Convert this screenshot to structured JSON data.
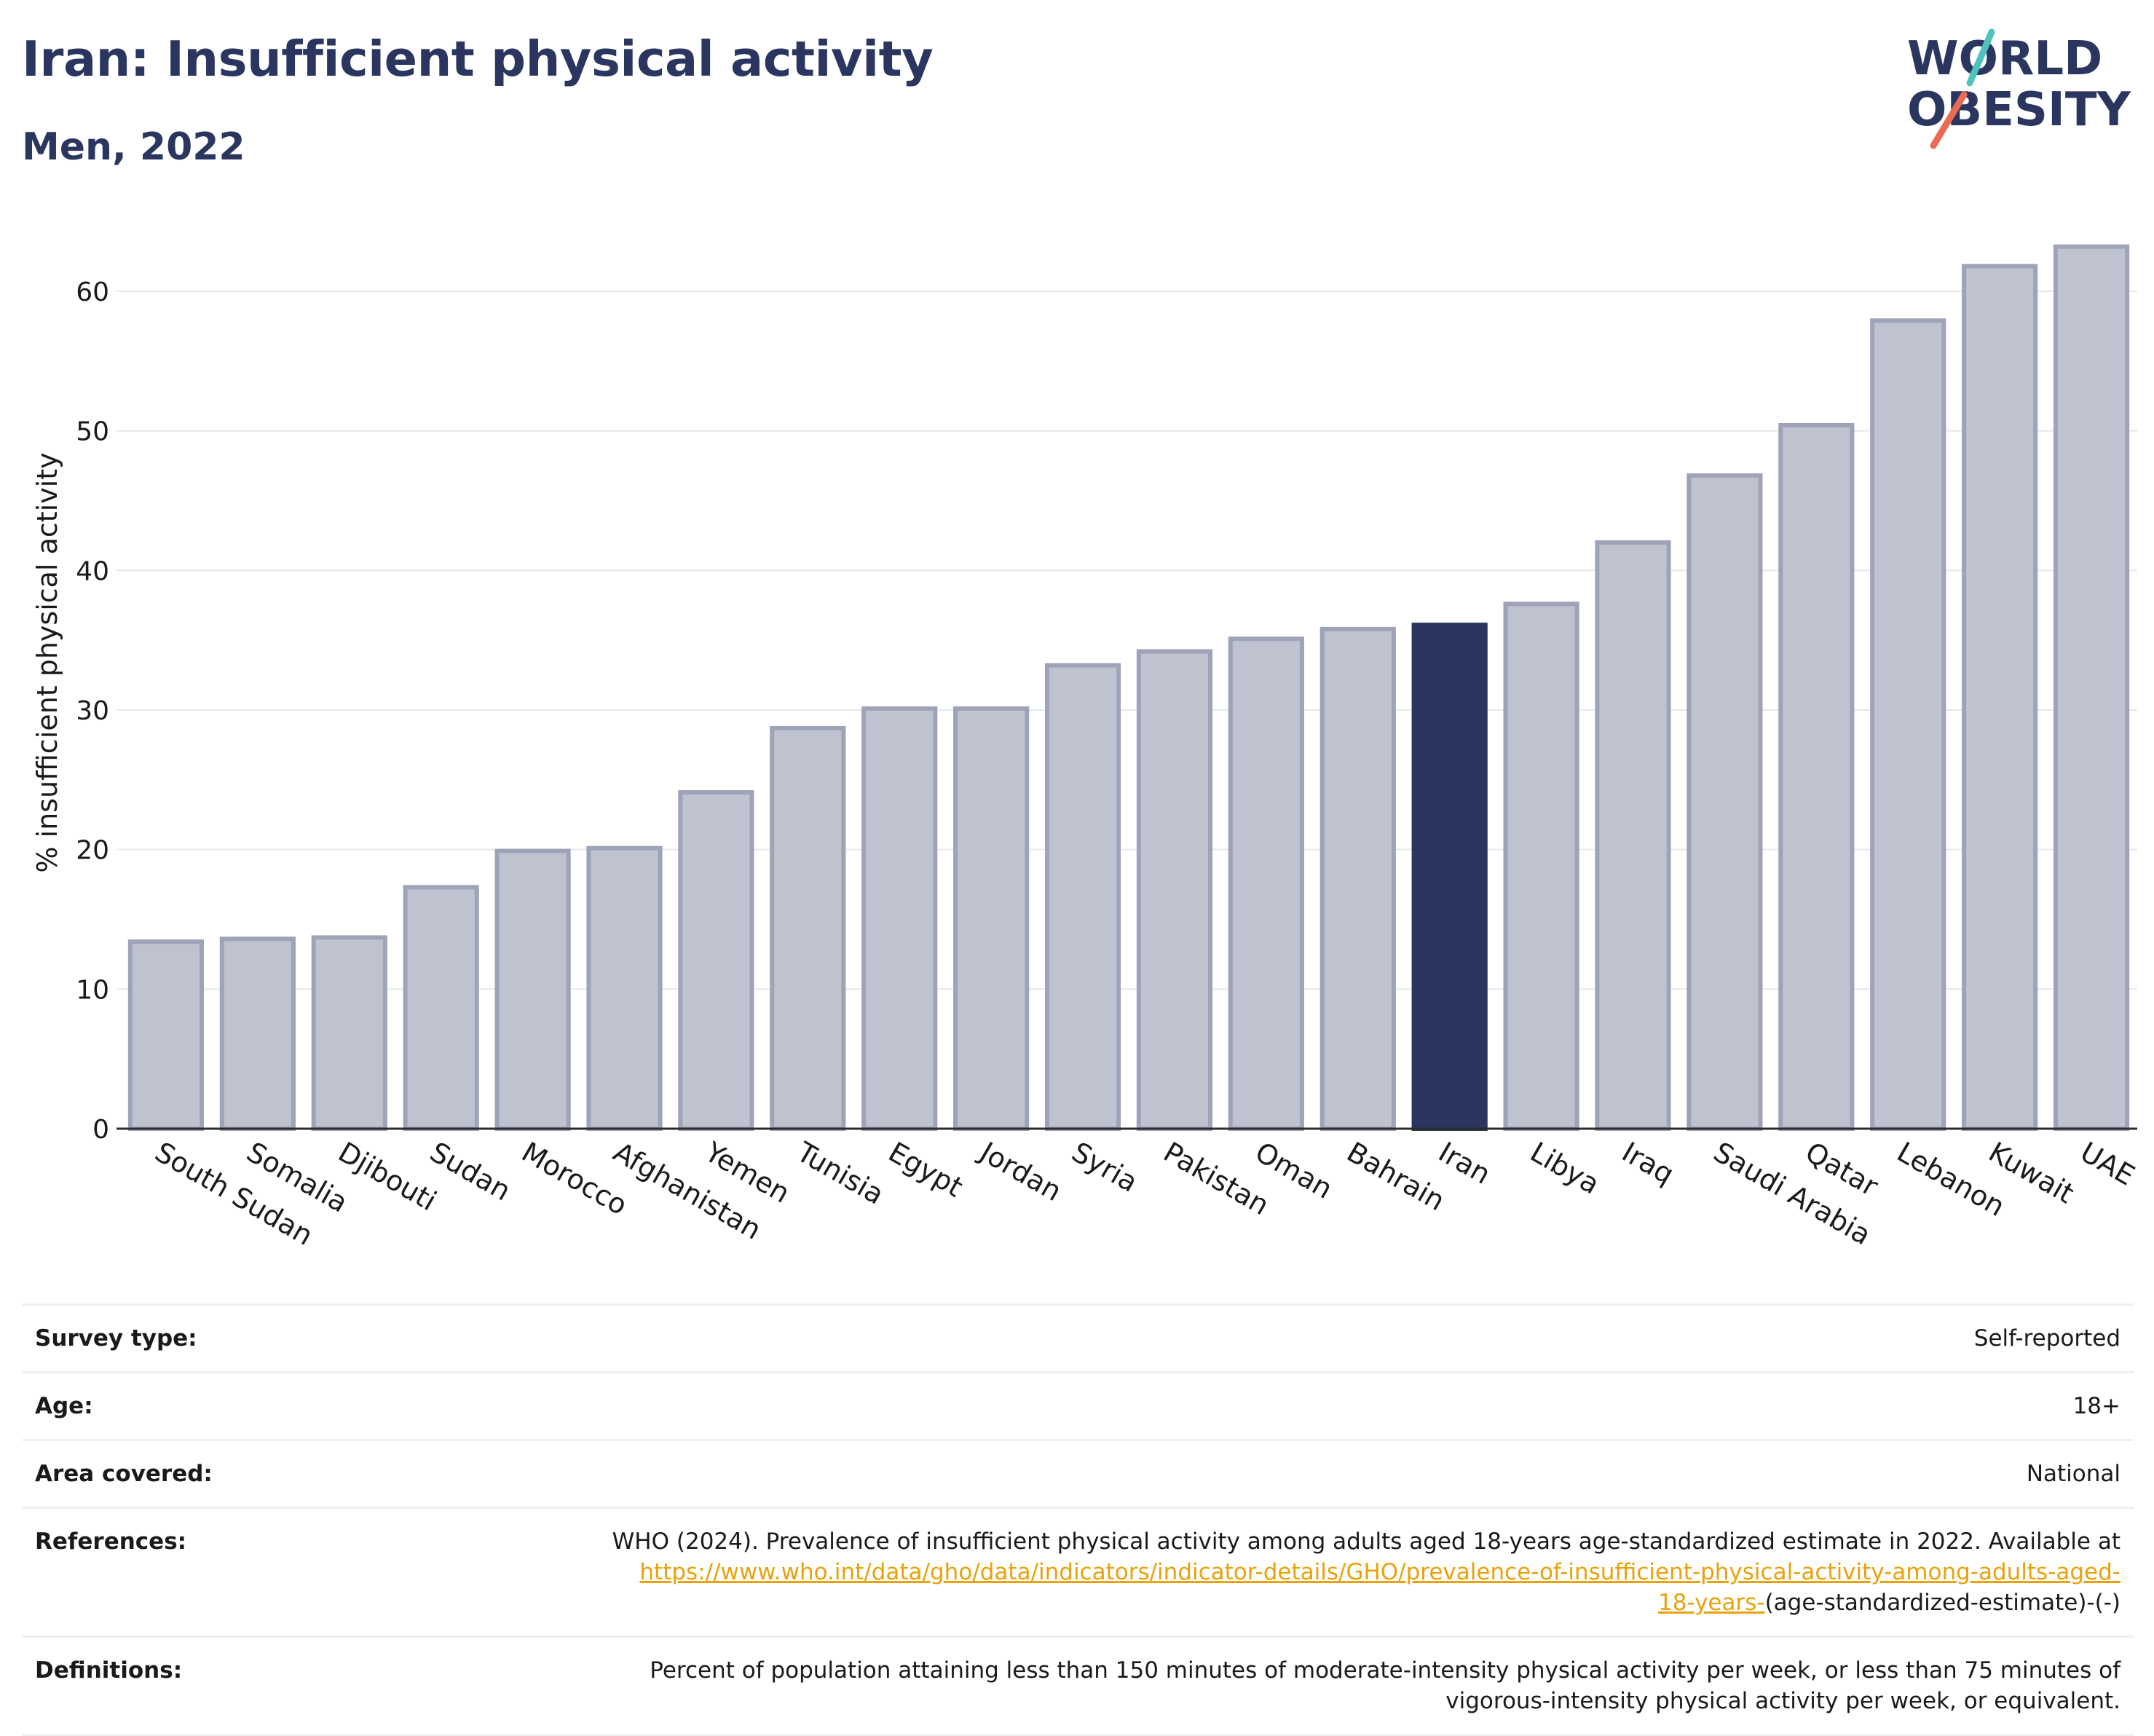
{
  "header": {
    "title": "Iran: Insufficient physical activity",
    "subtitle": "Men, 2022"
  },
  "logo": {
    "line1": "WORLD",
    "line2": "OBESITY",
    "name": "world-obesity-logo"
  },
  "colors": {
    "highlight": "#2a365f",
    "bar": "#bfc2cf",
    "bar_edge": "#9ea3b8",
    "accent_link": "#e8a20c"
  },
  "chart_data": {
    "type": "bar",
    "title": "Iran: Insufficient physical activity",
    "subtitle": "Men, 2022",
    "xlabel": "",
    "ylabel": "% insufficient physical activity",
    "ylim": [
      0,
      65
    ],
    "yticks": [
      0,
      10,
      20,
      30,
      40,
      50,
      60
    ],
    "grid": true,
    "highlight": "Iran",
    "categories": [
      "South Sudan",
      "Somalia",
      "Djibouti",
      "Sudan",
      "Morocco",
      "Afghanistan",
      "Yemen",
      "Tunisia",
      "Egypt",
      "Jordan",
      "Syria",
      "Pakistan",
      "Oman",
      "Bahrain",
      "Iran",
      "Libya",
      "Iraq",
      "Saudi Arabia",
      "Qatar",
      "Lebanon",
      "Kuwait",
      "UAE"
    ],
    "values": [
      13.4,
      13.6,
      13.7,
      17.3,
      19.9,
      20.1,
      24.1,
      28.7,
      30.1,
      30.1,
      33.2,
      34.2,
      35.1,
      35.8,
      36.1,
      37.6,
      42.0,
      46.8,
      50.4,
      57.9,
      61.8,
      63.2
    ]
  },
  "info": {
    "survey_type_label": "Survey type:",
    "survey_type_value": "Self-reported",
    "age_label": "Age:",
    "age_value": "18+",
    "area_label": "Area covered:",
    "area_value": "National",
    "references_label": "References:",
    "references_text": "WHO (2024). Prevalence of insufficient physical activity among adults aged 18-years age-standardized estimate in 2022. Available at",
    "references_link_1": "https://www.who.int/data/gho/data/indicators/indicator-details/GHO/prevalence-of-insufficient-physical-activity-among-adults-aged-",
    "references_link_2": "18-years-",
    "references_tail": "(age-standardized-estimate)-(-)",
    "definitions_label": "Definitions:",
    "definitions_line_1": "Percent of population attaining less than 150 minutes of moderate-intensity physical activity per week, or less than 75 minutes of",
    "definitions_line_2": "vigorous-intensity physical activity per week, or equivalent."
  }
}
